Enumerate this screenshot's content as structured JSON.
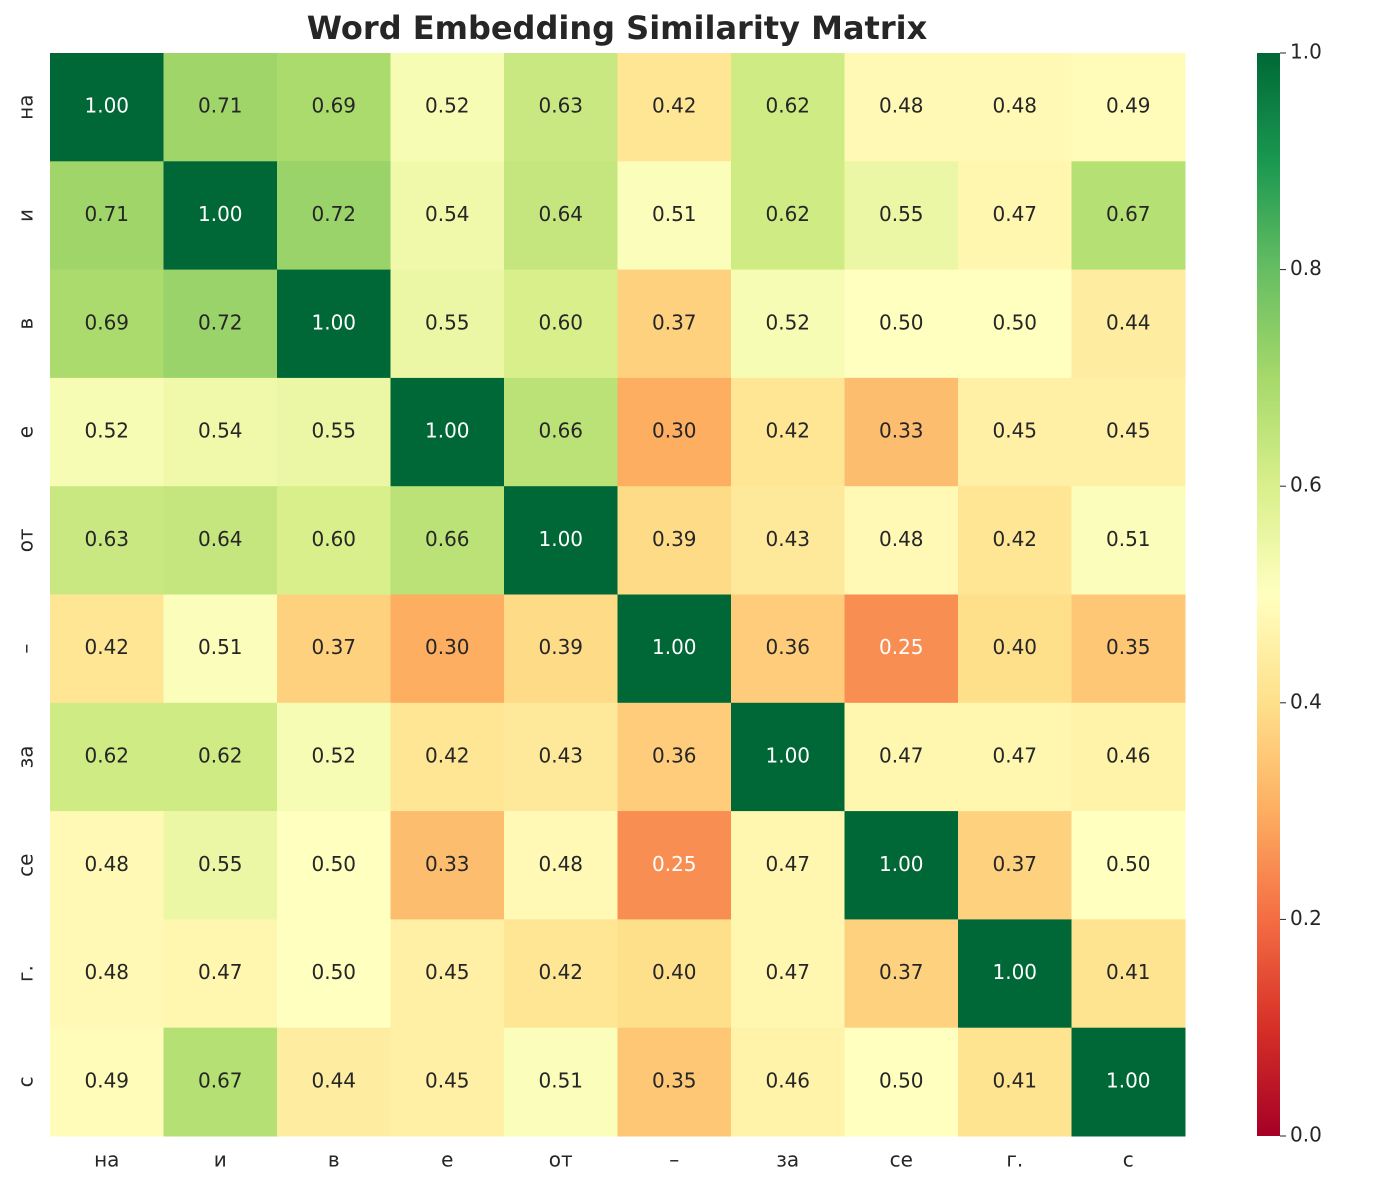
{
  "chart_data": {
    "type": "heatmap",
    "title": "Word Embedding Similarity Matrix",
    "x_categories": [
      "на",
      "и",
      "в",
      "е",
      "от",
      "–",
      "за",
      "се",
      "г.",
      "с"
    ],
    "y_categories": [
      "на",
      "и",
      "в",
      "е",
      "от",
      "–",
      "за",
      "се",
      "г.",
      "с"
    ],
    "values": [
      [
        1.0,
        0.71,
        0.69,
        0.52,
        0.63,
        0.42,
        0.62,
        0.48,
        0.48,
        0.49
      ],
      [
        0.71,
        1.0,
        0.72,
        0.54,
        0.64,
        0.51,
        0.62,
        0.55,
        0.47,
        0.67
      ],
      [
        0.69,
        0.72,
        1.0,
        0.55,
        0.6,
        0.37,
        0.52,
        0.5,
        0.5,
        0.44
      ],
      [
        0.52,
        0.54,
        0.55,
        1.0,
        0.66,
        0.3,
        0.42,
        0.33,
        0.45,
        0.45
      ],
      [
        0.63,
        0.64,
        0.6,
        0.66,
        1.0,
        0.39,
        0.43,
        0.48,
        0.42,
        0.51
      ],
      [
        0.42,
        0.51,
        0.37,
        0.3,
        0.39,
        1.0,
        0.36,
        0.25,
        0.4,
        0.35
      ],
      [
        0.62,
        0.62,
        0.52,
        0.42,
        0.43,
        0.36,
        1.0,
        0.47,
        0.47,
        0.46
      ],
      [
        0.48,
        0.55,
        0.5,
        0.33,
        0.48,
        0.25,
        0.47,
        1.0,
        0.37,
        0.5
      ],
      [
        0.48,
        0.47,
        0.5,
        0.45,
        0.42,
        0.4,
        0.47,
        0.37,
        1.0,
        0.41
      ],
      [
        0.49,
        0.67,
        0.44,
        0.45,
        0.51,
        0.35,
        0.46,
        0.5,
        0.41,
        1.0
      ]
    ],
    "value_labels": [
      [
        "1.00",
        "0.71",
        "0.69",
        "0.52",
        "0.63",
        "0.42",
        "0.62",
        "0.48",
        "0.48",
        "0.49"
      ],
      [
        "0.71",
        "1.00",
        "0.72",
        "0.54",
        "0.64",
        "0.51",
        "0.62",
        "0.55",
        "0.47",
        "0.67"
      ],
      [
        "0.69",
        "0.72",
        "1.00",
        "0.55",
        "0.60",
        "0.37",
        "0.52",
        "0.50",
        "0.50",
        "0.44"
      ],
      [
        "0.52",
        "0.54",
        "0.55",
        "1.00",
        "0.66",
        "0.30",
        "0.42",
        "0.33",
        "0.45",
        "0.45"
      ],
      [
        "0.63",
        "0.64",
        "0.60",
        "0.66",
        "1.00",
        "0.39",
        "0.43",
        "0.48",
        "0.42",
        "0.51"
      ],
      [
        "0.42",
        "0.51",
        "0.37",
        "0.30",
        "0.39",
        "1.00",
        "0.36",
        "0.25",
        "0.40",
        "0.35"
      ],
      [
        "0.62",
        "0.62",
        "0.52",
        "0.42",
        "0.43",
        "0.36",
        "1.00",
        "0.47",
        "0.47",
        "0.46"
      ],
      [
        "0.48",
        "0.55",
        "0.50",
        "0.33",
        "0.48",
        "0.25",
        "0.47",
        "1.00",
        "0.37",
        "0.50"
      ],
      [
        "0.48",
        "0.47",
        "0.50",
        "0.45",
        "0.42",
        "0.40",
        "0.47",
        "0.37",
        "1.00",
        "0.41"
      ],
      [
        "0.49",
        "0.67",
        "0.44",
        "0.45",
        "0.51",
        "0.35",
        "0.46",
        "0.50",
        "0.41",
        "1.00"
      ]
    ],
    "colormap": "RdYlGn",
    "clim": [
      0,
      1
    ],
    "cticks": [
      {
        "value": 0,
        "label": "0.0"
      },
      {
        "value": 0.2,
        "label": "0.2"
      },
      {
        "value": 0.4,
        "label": "0.4"
      },
      {
        "value": 0.6,
        "label": "0.6"
      },
      {
        "value": 0.8,
        "label": "0.8"
      },
      {
        "value": 1,
        "label": "1.0"
      }
    ]
  }
}
